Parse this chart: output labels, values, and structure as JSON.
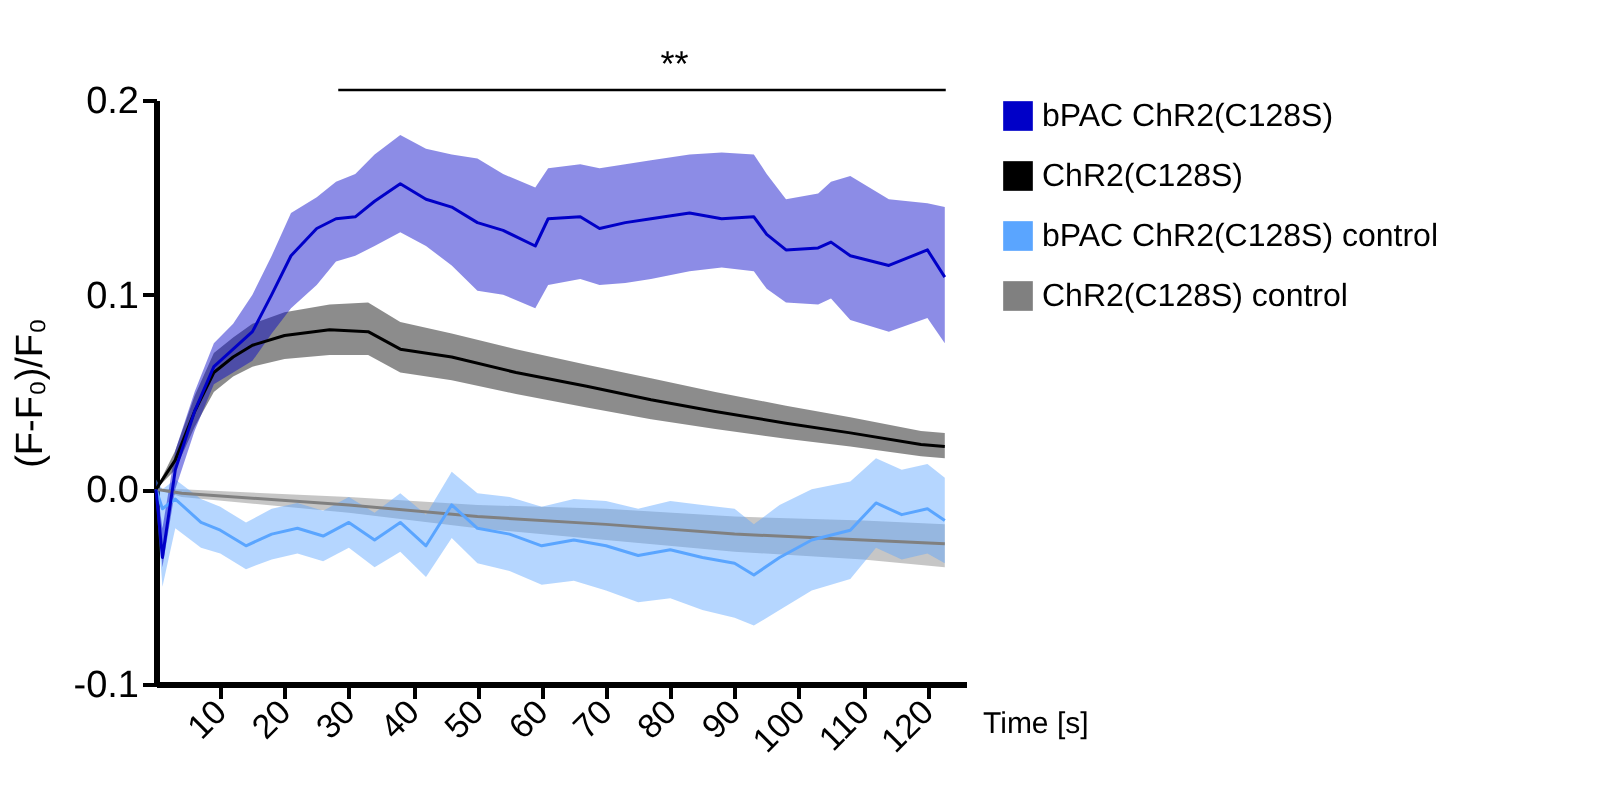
{
  "chart_data": {
    "type": "line",
    "xlabel": "Time [s]",
    "ylabel": "(F-F₀)/F₀",
    "xlim": [
      0,
      126
    ],
    "xticks": [
      10,
      20,
      30,
      40,
      50,
      60,
      70,
      80,
      90,
      100,
      110,
      120
    ],
    "ylim": [
      -0.1,
      0.2
    ],
    "yticks": [
      -0.1,
      {
        "value": 0,
        "label": "0.0"
      },
      0.1,
      0.2
    ],
    "grid": false,
    "legend": "right",
    "marker": "none",
    "line_style": "solid",
    "annotations": [
      "**"
    ],
    "series": [
      {
        "name": "bPAC ChR2(C128S)",
        "color": "#0000c8",
        "x": [
          0,
          1,
          3,
          6,
          9,
          12,
          15,
          18,
          21,
          25,
          28,
          31,
          34,
          38,
          42,
          46,
          50,
          54,
          59,
          61,
          66,
          69,
          73,
          77,
          83,
          88,
          93,
          95,
          98,
          103,
          105,
          108,
          114,
          120,
          122.7
        ],
        "values": [
          0,
          -0.035,
          0.01,
          0.04,
          0.063,
          0.072,
          0.081,
          0.1,
          0.12,
          0.134,
          0.139,
          0.14,
          0.148,
          0.157,
          0.149,
          0.145,
          0.137,
          0.133,
          0.125,
          0.139,
          0.14,
          0.134,
          0.137,
          0.139,
          0.142,
          0.139,
          0.14,
          0.131,
          0.123,
          0.124,
          0.127,
          0.12,
          0.115,
          0.123,
          0.109
        ],
        "lower": [
          0,
          -0.04,
          0.0,
          0.03,
          0.054,
          0.06,
          0.066,
          0.08,
          0.093,
          0.105,
          0.117,
          0.12,
          0.125,
          0.132,
          0.125,
          0.115,
          0.102,
          0.1,
          0.093,
          0.105,
          0.108,
          0.105,
          0.106,
          0.108,
          0.112,
          0.114,
          0.112,
          0.103,
          0.096,
          0.095,
          0.098,
          0.087,
          0.081,
          0.088,
          0.075
        ],
        "upper": [
          0.005,
          -0.02,
          0.02,
          0.05,
          0.075,
          0.085,
          0.1,
          0.12,
          0.142,
          0.15,
          0.158,
          0.162,
          0.172,
          0.182,
          0.175,
          0.172,
          0.17,
          0.162,
          0.155,
          0.165,
          0.167,
          0.165,
          0.167,
          0.169,
          0.172,
          0.173,
          0.172,
          0.162,
          0.149,
          0.152,
          0.158,
          0.161,
          0.149,
          0.147,
          0.145
        ]
      },
      {
        "name": "ChR2(C128S)",
        "color": "#000000",
        "x": [
          0,
          3,
          6,
          9,
          12,
          15,
          20,
          27,
          33,
          38,
          46,
          56,
          67,
          77,
          87,
          98,
          108,
          119,
          122.7
        ],
        "values": [
          0,
          0.015,
          0.04,
          0.06,
          0.068,
          0.074,
          0.079,
          0.082,
          0.081,
          0.072,
          0.068,
          0.06,
          0.053,
          0.046,
          0.04,
          0.034,
          0.029,
          0.023,
          0.022
        ],
        "lower": [
          0,
          0.01,
          0.032,
          0.05,
          0.058,
          0.063,
          0.067,
          0.069,
          0.069,
          0.06,
          0.056,
          0.049,
          0.042,
          0.036,
          0.031,
          0.026,
          0.022,
          0.017,
          0.016
        ],
        "upper": [
          0,
          0.02,
          0.048,
          0.07,
          0.078,
          0.085,
          0.091,
          0.095,
          0.096,
          0.086,
          0.08,
          0.072,
          0.064,
          0.057,
          0.05,
          0.043,
          0.037,
          0.03,
          0.029
        ]
      },
      {
        "name": "bPAC ChR2(C128S) control",
        "color": "#5aa5ff",
        "x": [
          0,
          1,
          3,
          7,
          10,
          14,
          18,
          22,
          26,
          30,
          34,
          38,
          42,
          46,
          50,
          55,
          60,
          65,
          70,
          75,
          80,
          85,
          90,
          93,
          97,
          102,
          108,
          112,
          116,
          120,
          122.7
        ],
        "values": [
          0,
          -0.01,
          -0.005,
          -0.017,
          -0.021,
          -0.029,
          -0.023,
          -0.02,
          -0.024,
          -0.017,
          -0.026,
          -0.017,
          -0.029,
          -0.008,
          -0.02,
          -0.023,
          -0.029,
          -0.026,
          -0.029,
          -0.034,
          -0.031,
          -0.035,
          -0.038,
          -0.044,
          -0.035,
          -0.026,
          -0.021,
          -0.007,
          -0.013,
          -0.01,
          -0.016
        ],
        "lower": [
          -0.005,
          -0.05,
          -0.02,
          -0.03,
          -0.033,
          -0.041,
          -0.036,
          -0.033,
          -0.037,
          -0.03,
          -0.04,
          -0.032,
          -0.045,
          -0.025,
          -0.038,
          -0.042,
          -0.049,
          -0.047,
          -0.052,
          -0.058,
          -0.056,
          -0.062,
          -0.066,
          -0.07,
          -0.062,
          -0.052,
          -0.046,
          -0.03,
          -0.036,
          -0.033,
          -0.038
        ],
        "upper": [
          0.005,
          0.0,
          0.005,
          -0.005,
          -0.009,
          -0.017,
          -0.01,
          -0.007,
          -0.011,
          -0.004,
          -0.012,
          -0.002,
          -0.013,
          0.009,
          -0.002,
          -0.004,
          -0.009,
          -0.005,
          -0.006,
          -0.01,
          -0.006,
          -0.008,
          -0.01,
          -0.018,
          -0.008,
          0.0,
          0.004,
          0.016,
          0.01,
          0.013,
          0.006
        ]
      },
      {
        "name": "ChR2(C128S) control",
        "color": "#808080",
        "x": [
          0,
          4,
          30,
          50,
          70,
          90,
          110,
          122.7
        ],
        "values": [
          0,
          -0.002,
          -0.008,
          -0.014,
          -0.018,
          -0.023,
          -0.026,
          -0.028
        ],
        "lower": [
          0,
          -0.004,
          -0.012,
          -0.02,
          -0.026,
          -0.032,
          -0.036,
          -0.04
        ],
        "upper": [
          0,
          0,
          -0.004,
          -0.008,
          -0.01,
          -0.014,
          -0.016,
          -0.018
        ]
      }
    ]
  }
}
